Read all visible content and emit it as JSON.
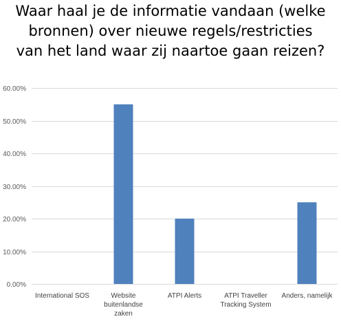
{
  "chart_data": {
    "type": "bar",
    "title": "Waar haal je de informatie vandaan (welke bronnen) over nieuwe regels/restricties van het land waar zij naartoe gaan reizen?",
    "categories": [
      [
        "International SOS"
      ],
      [
        "Website",
        "buitenlandse",
        "zaken"
      ],
      [
        "ATPI Alerts"
      ],
      [
        "ATPI Traveller",
        "Tracking System"
      ],
      [
        "Anders, namelijk"
      ]
    ],
    "values": [
      0,
      0.55,
      0.2,
      0,
      0.25
    ],
    "ylim": [
      0,
      0.6
    ],
    "yticks": [
      0,
      0.1,
      0.2,
      0.3,
      0.4,
      0.5,
      0.6
    ],
    "ytick_labels": [
      "0.00%",
      "10.00%",
      "20.00%",
      "30.00%",
      "40.00%",
      "50.00%",
      "60.00%"
    ],
    "grid": true,
    "bar_color": "#4f81bd",
    "grid_color": "#d9d9d9",
    "xlabel": "",
    "ylabel": ""
  }
}
